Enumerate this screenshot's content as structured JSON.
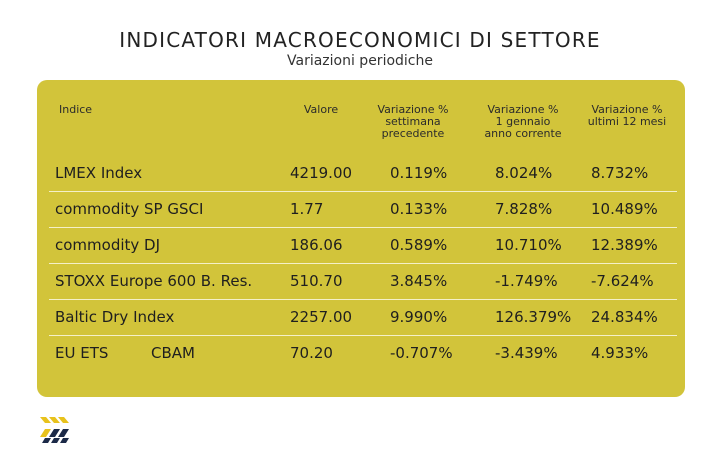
{
  "title": "INDICATORI MACROECONOMICI DI SETTORE",
  "subtitle": "Variazioni periodiche",
  "colors": {
    "card": "#d2c43a",
    "row_divider": "#f4f0c8",
    "logo_yellow": "#e8c21c",
    "logo_navy": "#1c2a48"
  },
  "table": {
    "headers": {
      "index": "Indice",
      "value": "Valore",
      "week": [
        "Variazione %",
        "settimana",
        "precedente"
      ],
      "ytd": [
        "Variazione %",
        "1 gennaio",
        "anno corrente"
      ],
      "year": [
        "Variazione %",
        "ultimi 12 mesi"
      ]
    },
    "rows": [
      {
        "name": "LMEX Index",
        "name2": "",
        "value": "4219.00",
        "week": "0.119%",
        "ytd": "8.024%",
        "year": "8.732%"
      },
      {
        "name": "commodity SP GSCI",
        "name2": "",
        "value": "1.77",
        "week": "0.133%",
        "ytd": "7.828%",
        "year": "10.489%"
      },
      {
        "name": "commodity DJ",
        "name2": "",
        "value": "186.06",
        "week": "0.589%",
        "ytd": "10.710%",
        "year": "12.389%"
      },
      {
        "name": "STOXX Europe 600 B. Res.",
        "name2": "",
        "value": "510.70",
        "week": "3.845%",
        "ytd": "-1.749%",
        "year": "-7.624%"
      },
      {
        "name": "Baltic Dry Index",
        "name2": "",
        "value": "2257.00",
        "week": "9.990%",
        "ytd": "126.379%",
        "year": "24.834%"
      },
      {
        "name": "EU ETS",
        "name2": "CBAM",
        "value": "70.20",
        "week": "-0.707%",
        "ytd": "-3.439%",
        "year": "4.933%"
      }
    ]
  },
  "logo": {
    "icon": "chevron-stripes-logo-icon"
  }
}
